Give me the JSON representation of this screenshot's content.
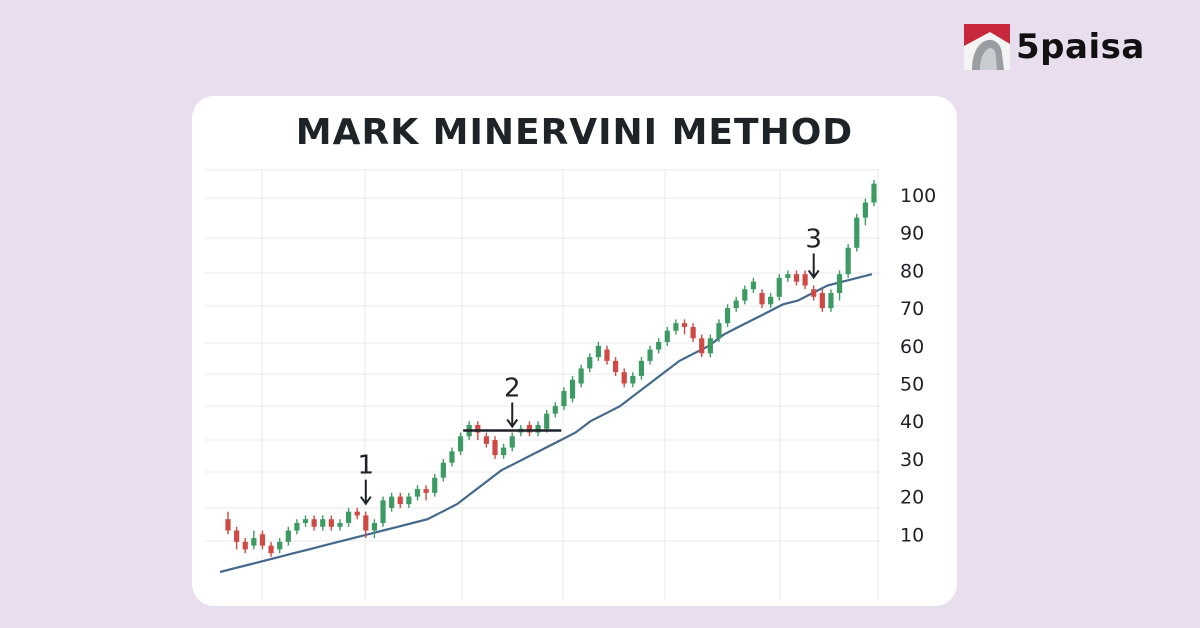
{
  "brand": {
    "name": "5paisa",
    "accent": "#c8283c"
  },
  "chart_data": {
    "type": "candlestick",
    "title": "MARK MINERVINI METHOD",
    "ylim": [
      0,
      100
    ],
    "y_ticks": [
      10,
      20,
      30,
      40,
      50,
      60,
      70,
      80,
      90,
      100
    ],
    "grid": true,
    "colors": {
      "up": "#3e9a63",
      "down": "#cf4a44",
      "ma": "#44698c"
    },
    "candles": [
      {
        "o": 14,
        "c": 11,
        "h": 16,
        "l": 10
      },
      {
        "o": 11,
        "c": 8,
        "h": 12,
        "l": 6
      },
      {
        "o": 8,
        "c": 6,
        "h": 9,
        "l": 5
      },
      {
        "o": 7,
        "c": 9,
        "h": 11,
        "l": 6
      },
      {
        "o": 10,
        "c": 7,
        "h": 11,
        "l": 6
      },
      {
        "o": 7,
        "c": 5,
        "h": 8,
        "l": 4
      },
      {
        "o": 6,
        "c": 8,
        "h": 9,
        "l": 5
      },
      {
        "o": 8,
        "c": 11,
        "h": 12,
        "l": 7
      },
      {
        "o": 11,
        "c": 13,
        "h": 14,
        "l": 10
      },
      {
        "o": 13,
        "c": 14,
        "h": 15,
        "l": 12
      },
      {
        "o": 14,
        "c": 12,
        "h": 15,
        "l": 11
      },
      {
        "o": 12,
        "c": 14,
        "h": 15,
        "l": 11
      },
      {
        "o": 14,
        "c": 12,
        "h": 15,
        "l": 11
      },
      {
        "o": 12,
        "c": 13,
        "h": 14,
        "l": 11
      },
      {
        "o": 13,
        "c": 16,
        "h": 17,
        "l": 12
      },
      {
        "o": 16,
        "c": 15,
        "h": 17,
        "l": 14
      },
      {
        "o": 15,
        "c": 11,
        "h": 16,
        "l": 9
      },
      {
        "o": 11,
        "c": 13,
        "h": 14,
        "l": 9
      },
      {
        "o": 13,
        "c": 19,
        "h": 20,
        "l": 12
      },
      {
        "o": 17,
        "c": 20,
        "h": 21,
        "l": 16
      },
      {
        "o": 20,
        "c": 18,
        "h": 21,
        "l": 17
      },
      {
        "o": 18,
        "c": 20,
        "h": 21,
        "l": 17
      },
      {
        "o": 20,
        "c": 22,
        "h": 23,
        "l": 19
      },
      {
        "o": 22,
        "c": 21,
        "h": 23,
        "l": 19
      },
      {
        "o": 21,
        "c": 25,
        "h": 26,
        "l": 20
      },
      {
        "o": 25,
        "c": 29,
        "h": 30,
        "l": 24
      },
      {
        "o": 29,
        "c": 32,
        "h": 33,
        "l": 28
      },
      {
        "o": 32,
        "c": 36,
        "h": 37,
        "l": 31
      },
      {
        "o": 36,
        "c": 39,
        "h": 40,
        "l": 35
      },
      {
        "o": 39,
        "c": 37,
        "h": 40,
        "l": 35
      },
      {
        "o": 36,
        "c": 34,
        "h": 37,
        "l": 33
      },
      {
        "o": 35,
        "c": 31,
        "h": 36,
        "l": 30
      },
      {
        "o": 31,
        "c": 33,
        "h": 34,
        "l": 30
      },
      {
        "o": 33,
        "c": 36,
        "h": 37,
        "l": 32
      },
      {
        "o": 37,
        "c": 38,
        "h": 39,
        "l": 36
      },
      {
        "o": 39,
        "c": 37,
        "h": 40,
        "l": 36
      },
      {
        "o": 37,
        "c": 39,
        "h": 40,
        "l": 36
      },
      {
        "o": 38,
        "c": 42,
        "h": 43,
        "l": 37
      },
      {
        "o": 42,
        "c": 44,
        "h": 45,
        "l": 41
      },
      {
        "o": 44,
        "c": 48,
        "h": 49,
        "l": 43
      },
      {
        "o": 46,
        "c": 51,
        "h": 52,
        "l": 45
      },
      {
        "o": 50,
        "c": 54,
        "h": 55,
        "l": 49
      },
      {
        "o": 54,
        "c": 57,
        "h": 58,
        "l": 53
      },
      {
        "o": 57,
        "c": 60,
        "h": 61,
        "l": 56
      },
      {
        "o": 59,
        "c": 56,
        "h": 60,
        "l": 55
      },
      {
        "o": 56,
        "c": 53,
        "h": 57,
        "l": 52
      },
      {
        "o": 53,
        "c": 50,
        "h": 54,
        "l": 49
      },
      {
        "o": 50,
        "c": 52,
        "h": 53,
        "l": 49
      },
      {
        "o": 52,
        "c": 56,
        "h": 57,
        "l": 51
      },
      {
        "o": 56,
        "c": 59,
        "h": 60,
        "l": 55
      },
      {
        "o": 59,
        "c": 61,
        "h": 62,
        "l": 58
      },
      {
        "o": 61,
        "c": 64,
        "h": 65,
        "l": 60
      },
      {
        "o": 64,
        "c": 66,
        "h": 67,
        "l": 63
      },
      {
        "o": 66,
        "c": 65,
        "h": 67,
        "l": 63
      },
      {
        "o": 65,
        "c": 62,
        "h": 66,
        "l": 61
      },
      {
        "o": 62,
        "c": 58,
        "h": 63,
        "l": 57
      },
      {
        "o": 58,
        "c": 62,
        "h": 63,
        "l": 57
      },
      {
        "o": 62,
        "c": 66,
        "h": 67,
        "l": 61
      },
      {
        "o": 66,
        "c": 70,
        "h": 71,
        "l": 65
      },
      {
        "o": 70,
        "c": 72,
        "h": 73,
        "l": 69
      },
      {
        "o": 72,
        "c": 75,
        "h": 76,
        "l": 71
      },
      {
        "o": 75,
        "c": 77,
        "h": 78,
        "l": 74
      },
      {
        "o": 74,
        "c": 71,
        "h": 75,
        "l": 70
      },
      {
        "o": 71,
        "c": 73,
        "h": 74,
        "l": 70
      },
      {
        "o": 73,
        "c": 78,
        "h": 79,
        "l": 72
      },
      {
        "o": 78,
        "c": 79,
        "h": 80,
        "l": 77
      },
      {
        "o": 79,
        "c": 77,
        "h": 80,
        "l": 76
      },
      {
        "o": 79,
        "c": 76,
        "h": 80,
        "l": 75
      },
      {
        "o": 75,
        "c": 73,
        "h": 76,
        "l": 72
      },
      {
        "o": 74,
        "c": 70,
        "h": 75,
        "l": 69
      },
      {
        "o": 70,
        "c": 74,
        "h": 75,
        "l": 69
      },
      {
        "o": 74,
        "c": 79,
        "h": 80,
        "l": 72
      },
      {
        "o": 79,
        "c": 86,
        "h": 87,
        "l": 78
      },
      {
        "o": 86,
        "c": 94,
        "h": 95,
        "l": 85
      },
      {
        "o": 94,
        "c": 98,
        "h": 99,
        "l": 92
      },
      {
        "o": 98,
        "c": 103,
        "h": 104,
        "l": 97
      }
    ],
    "moving_average": [
      0,
      1,
      2,
      3,
      4,
      5,
      6,
      7,
      8,
      9,
      10,
      11,
      12,
      13,
      14,
      16,
      18,
      21,
      24,
      27,
      29,
      31,
      33,
      35,
      37,
      40,
      42,
      44,
      47,
      50,
      53,
      56,
      58,
      60,
      63,
      65,
      67,
      69,
      71,
      72,
      74,
      76,
      77,
      78,
      79
    ],
    "annotations": [
      {
        "label": "1",
        "candle": 16
      },
      {
        "label": "2",
        "candle": 33,
        "line": [
          28,
          38
        ]
      },
      {
        "label": "3",
        "candle": 68
      }
    ]
  }
}
